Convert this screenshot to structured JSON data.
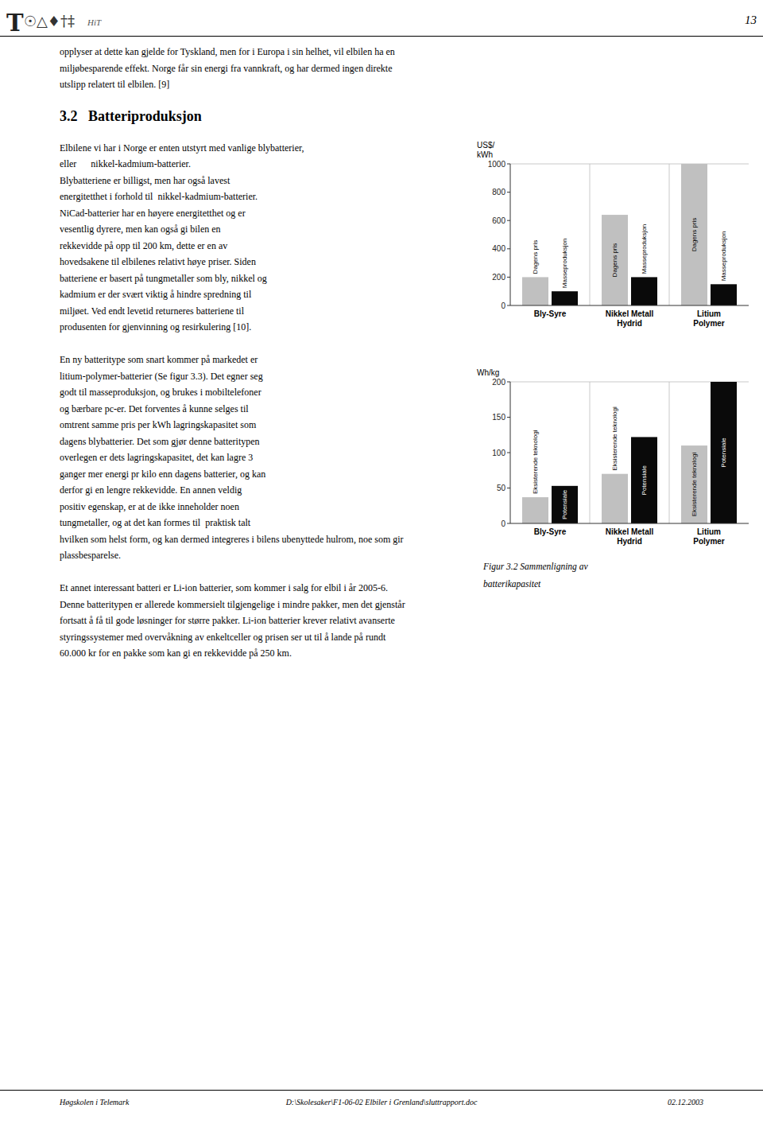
{
  "chart_data": [
    {
      "type": "bar",
      "y_label": "US$/\nkWh",
      "categories": [
        "Bly-Syre",
        "Nikkel Metall\nHydrid",
        "Litium\nPolymer"
      ],
      "series": [
        {
          "name": "Dagens pris",
          "color": "#c0c0c0",
          "values": [
            200,
            640,
            1000
          ]
        },
        {
          "name": "Masseproduksjon",
          "color": "#0a0a0a",
          "values": [
            100,
            200,
            150
          ]
        }
      ],
      "ylim": [
        0,
        1000
      ],
      "yticks": [
        0,
        200,
        400,
        600,
        800,
        1000
      ],
      "grid": false
    },
    {
      "type": "bar",
      "y_label": "Wh/kg",
      "categories": [
        "Bly-Syre",
        "Nikkel Metall\nHydrid",
        "Litium\nPolymer"
      ],
      "series": [
        {
          "name": "Eksisterende teknologi",
          "color": "#c0c0c0",
          "values": [
            37,
            70,
            110
          ]
        },
        {
          "name": "Potensiale",
          "color": "#0a0a0a",
          "values": [
            53,
            122,
            200
          ]
        }
      ],
      "ylim": [
        0,
        200
      ],
      "yticks": [
        0,
        50,
        100,
        150,
        200
      ],
      "grid": false
    }
  ],
  "page": {
    "header": [
      "T",
      "☉△♦†‡",
      "HiT"
    ],
    "page_number": "13",
    "intro": [
      "opplyser at dette kan gjelde for Tyskland, men for i Europa i sin helhet, vil elbilen ha en",
      "miljøbesparende effekt. Norge får sin energi fra vannkraft, og har dermed ingen direkte",
      "utslipp relatert til elbilen. [9]"
    ],
    "section_title": "3.2   Batteriproduksjon",
    "body": [
      [
        "Elbilene vi har i Norge er enten utstyrt med vanlige blybatterier,",
        "eller      nikkel-kadmium-batterier.",
        "Blybatteriene er billigst, men har også lavest",
        "energitetthet i forhold til  nikkel-kadmium-batterier.",
        "NiCad-batterier har en høyere energitetthet og er",
        "vesentlig dyrere, men kan også gi bilen en",
        "rekkevidde på opp til 200 km, dette er en av",
        "hovedsakene til elbilenes relativt høye priser. Siden",
        "batteriene er basert på tungmetaller som bly, nikkel og",
        "kadmium er der svært viktig å hindre spredning til",
        "miljøet. Ved endt levetid returneres batteriene til",
        "produsenten for gjenvinning og resirkulering [10]."
      ],
      [
        "En ny batteritype som snart kommer på markedet er",
        "litium-polymer-batterier (Se figur 3.3). Det egner seg",
        "godt til masseproduksjon, og brukes i mobiltelefoner",
        "og bærbare pc-er. Det forventes å kunne selges til",
        "omtrent samme pris per kWh lagringskapasitet som",
        "dagens blybatterier. Det som gjør denne batteritypen",
        "overlegen er dets lagringskapasitet, det kan lagre 3",
        "ganger mer energi pr kilo enn dagens batterier, og kan",
        "derfor gi en lengre rekkevidde. En annen veldig",
        "positiv egenskap, er at de ikke inneholder noen",
        "tungmetaller, og at det kan formes til  praktisk talt",
        "hvilken som helst form, og kan dermed integreres i bilens ubenyttede hulrom, noe som gir",
        "plassbesparelse."
      ],
      [
        "Et annet interessant batteri er Li-ion batterier, som kommer i salg for elbil i år 2005-6.",
        "Denne batteritypen er allerede kommersielt tilgjengelige i mindre pakker, men det gjenstår",
        "fortsatt å få til gode løsninger for større pakker. Li-ion batterier krever relativt avanserte",
        "styringssystemer med overvåkning av enkeltceller og prisen ser ut til å lande på rundt",
        "60.000 kr for en pakke som kan gi en rekkevidde på 250 km."
      ]
    ],
    "caption": [
      "Figur 3.2 Sammenligning av",
      "batterikapasitet"
    ],
    "footer": [
      "Høgskolen i Telemark",
      "D:\\Skolesaker\\F1-06-02 Elbiler i Grenland\\sluttrapport.doc",
      "02.12.2003"
    ]
  }
}
